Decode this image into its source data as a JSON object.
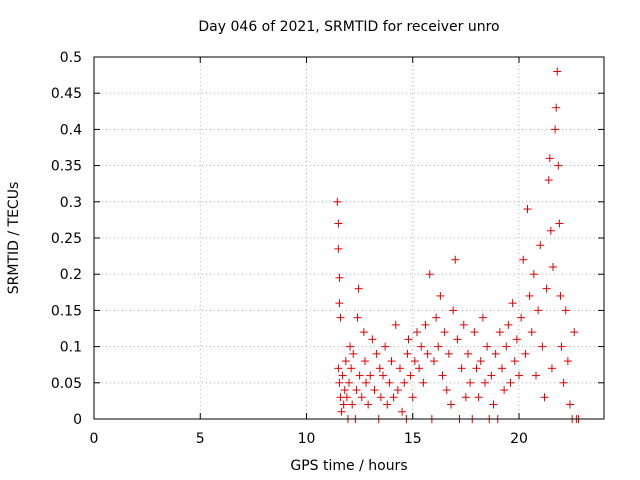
{
  "chart_data": {
    "type": "scatter",
    "title": "Day 046 of 2021, SRMTID for receiver unro",
    "xlabel": "GPS time / hours",
    "ylabel": "SRMTID / TECUs",
    "xlim": [
      0,
      24
    ],
    "ylim": [
      0,
      0.5
    ],
    "xticks": [
      "0",
      "5",
      "10",
      "15",
      "20"
    ],
    "xtick_values": [
      0,
      5,
      10,
      15,
      20
    ],
    "yticks": [
      "0",
      "0.05",
      "0.1",
      "0.15",
      "0.2",
      "0.25",
      "0.3",
      "0.35",
      "0.4",
      "0.45",
      "0.5"
    ],
    "ytick_values": [
      0,
      0.05,
      0.1,
      0.15,
      0.2,
      0.25,
      0.3,
      0.35,
      0.4,
      0.45,
      0.5
    ],
    "grid": true,
    "marker": "+",
    "color": "#e00000",
    "series": [
      {
        "name": "SRMTID",
        "points": [
          [
            11.45,
            0.3
          ],
          [
            11.5,
            0.27
          ],
          [
            11.5,
            0.235
          ],
          [
            11.55,
            0.195
          ],
          [
            11.55,
            0.16
          ],
          [
            11.6,
            0.14
          ],
          [
            11.5,
            0.07
          ],
          [
            11.55,
            0.05
          ],
          [
            11.6,
            0.03
          ],
          [
            11.65,
            0.01
          ],
          [
            11.7,
            0.06
          ],
          [
            11.75,
            0.02
          ],
          [
            11.8,
            0.04
          ],
          [
            11.85,
            0.08
          ],
          [
            11.9,
            0.03
          ],
          [
            11.95,
            0.0
          ],
          [
            12.0,
            0.05
          ],
          [
            12.05,
            0.1
          ],
          [
            12.1,
            0.07
          ],
          [
            12.15,
            0.02
          ],
          [
            12.2,
            0.09
          ],
          [
            12.3,
            0.0
          ],
          [
            12.35,
            0.04
          ],
          [
            12.4,
            0.14
          ],
          [
            12.45,
            0.18
          ],
          [
            12.5,
            0.06
          ],
          [
            12.6,
            0.03
          ],
          [
            12.7,
            0.12
          ],
          [
            12.75,
            0.08
          ],
          [
            12.8,
            0.05
          ],
          [
            12.9,
            0.02
          ],
          [
            13.0,
            0.06
          ],
          [
            13.1,
            0.11
          ],
          [
            13.2,
            0.04
          ],
          [
            13.3,
            0.09
          ],
          [
            13.4,
            0.0
          ],
          [
            13.45,
            0.07
          ],
          [
            13.5,
            0.03
          ],
          [
            13.6,
            0.06
          ],
          [
            13.7,
            0.1
          ],
          [
            13.8,
            0.02
          ],
          [
            13.9,
            0.05
          ],
          [
            14.0,
            0.08
          ],
          [
            14.1,
            0.03
          ],
          [
            14.2,
            0.13
          ],
          [
            14.3,
            0.04
          ],
          [
            14.4,
            0.07
          ],
          [
            14.5,
            0.01
          ],
          [
            14.6,
            0.05
          ],
          [
            14.7,
            0.0
          ],
          [
            14.75,
            0.09
          ],
          [
            14.8,
            0.11
          ],
          [
            14.9,
            0.06
          ],
          [
            15.0,
            0.03
          ],
          [
            15.1,
            0.08
          ],
          [
            15.2,
            0.12
          ],
          [
            15.3,
            0.07
          ],
          [
            15.4,
            0.1
          ],
          [
            15.5,
            0.05
          ],
          [
            15.6,
            0.13
          ],
          [
            15.7,
            0.09
          ],
          [
            15.8,
            0.2
          ],
          [
            15.9,
            0.0
          ],
          [
            16.0,
            0.08
          ],
          [
            16.1,
            0.14
          ],
          [
            16.2,
            0.1
          ],
          [
            16.3,
            0.17
          ],
          [
            16.4,
            0.06
          ],
          [
            16.5,
            0.12
          ],
          [
            16.6,
            0.04
          ],
          [
            16.7,
            0.09
          ],
          [
            16.8,
            0.02
          ],
          [
            16.9,
            0.15
          ],
          [
            17.0,
            0.22
          ],
          [
            17.1,
            0.11
          ],
          [
            17.2,
            0.0
          ],
          [
            17.3,
            0.07
          ],
          [
            17.4,
            0.13
          ],
          [
            17.5,
            0.03
          ],
          [
            17.6,
            0.09
          ],
          [
            17.7,
            0.05
          ],
          [
            17.8,
            0.0
          ],
          [
            17.9,
            0.12
          ],
          [
            18.0,
            0.07
          ],
          [
            18.1,
            0.03
          ],
          [
            18.2,
            0.08
          ],
          [
            18.3,
            0.14
          ],
          [
            18.4,
            0.05
          ],
          [
            18.5,
            0.1
          ],
          [
            18.6,
            0.0
          ],
          [
            18.7,
            0.06
          ],
          [
            18.8,
            0.02
          ],
          [
            18.9,
            0.09
          ],
          [
            19.0,
            0.0
          ],
          [
            19.1,
            0.12
          ],
          [
            19.2,
            0.07
          ],
          [
            19.3,
            0.04
          ],
          [
            19.4,
            0.1
          ],
          [
            19.5,
            0.13
          ],
          [
            19.6,
            0.05
          ],
          [
            19.7,
            0.16
          ],
          [
            19.8,
            0.08
          ],
          [
            19.9,
            0.11
          ],
          [
            20.0,
            0.06
          ],
          [
            20.1,
            0.14
          ],
          [
            20.2,
            0.22
          ],
          [
            20.3,
            0.09
          ],
          [
            20.4,
            0.29
          ],
          [
            20.5,
            0.17
          ],
          [
            20.6,
            0.12
          ],
          [
            20.7,
            0.2
          ],
          [
            20.8,
            0.06
          ],
          [
            20.9,
            0.15
          ],
          [
            21.0,
            0.24
          ],
          [
            21.1,
            0.1
          ],
          [
            21.2,
            0.03
          ],
          [
            21.3,
            0.18
          ],
          [
            21.4,
            0.33
          ],
          [
            21.45,
            0.36
          ],
          [
            21.5,
            0.26
          ],
          [
            21.55,
            0.07
          ],
          [
            21.6,
            0.21
          ],
          [
            21.7,
            0.4
          ],
          [
            21.75,
            0.43
          ],
          [
            21.8,
            0.48
          ],
          [
            21.85,
            0.35
          ],
          [
            21.9,
            0.27
          ],
          [
            21.95,
            0.17
          ],
          [
            22.0,
            0.1
          ],
          [
            22.1,
            0.05
          ],
          [
            22.2,
            0.15
          ],
          [
            22.3,
            0.08
          ],
          [
            22.4,
            0.02
          ],
          [
            22.5,
            0.0
          ],
          [
            22.6,
            0.12
          ],
          [
            22.7,
            0.0
          ],
          [
            22.8,
            0.0
          ]
        ]
      }
    ]
  }
}
